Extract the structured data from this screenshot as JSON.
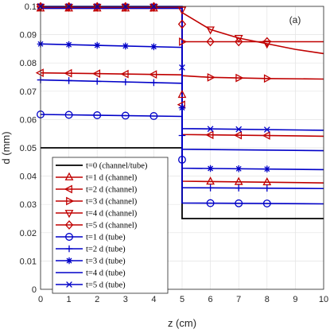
{
  "chart_data": {
    "type": "line",
    "panel_label": "(a)",
    "xlabel": "z (cm)",
    "ylabel": "d (mm)",
    "xlim": [
      0,
      10
    ],
    "ylim": [
      0,
      0.1
    ],
    "xticks": [
      "0",
      "1",
      "2",
      "3",
      "4",
      "5",
      "6",
      "7",
      "8",
      "9",
      "10"
    ],
    "yticks": [
      "0",
      "0.01",
      "0.02",
      "0.03",
      "0.04",
      "0.05",
      "0.06",
      "0.07",
      "0.08",
      "0.09",
      "0.1"
    ],
    "grid": true,
    "legend_position": "lower-left",
    "marker_x": [
      0,
      1,
      2,
      3,
      4,
      6,
      7,
      8
    ],
    "series": [
      {
        "name": "t=0 (channel/tube)",
        "color": "#000000",
        "marker": "none",
        "x": [
          0,
          5,
          5,
          10
        ],
        "y": [
          0.05,
          0.05,
          0.025,
          0.025
        ]
      },
      {
        "name": "t=1 d (channel)",
        "color": "#c00000",
        "marker": "triangle-up",
        "x": [
          0,
          5,
          5,
          10
        ],
        "y": [
          0.0993,
          0.0993,
          0.0382,
          0.0376
        ]
      },
      {
        "name": "t=2 d (channel)",
        "color": "#c00000",
        "marker": "triangle-left",
        "x": [
          0,
          5,
          5,
          10
        ],
        "y": [
          0.0765,
          0.0758,
          0.0547,
          0.0541
        ]
      },
      {
        "name": "t=3 d (channel)",
        "color": "#c00000",
        "marker": "triangle-right",
        "x": [
          0,
          5,
          5,
          6,
          7,
          8,
          10
        ],
        "y": [
          0.0997,
          0.0995,
          0.0755,
          0.0749,
          0.0747,
          0.0745,
          0.0743
        ]
      },
      {
        "name": "t=4 d (channel)",
        "color": "#c00000",
        "marker": "triangle-down",
        "x": [
          0,
          5,
          5,
          6,
          7,
          8,
          9,
          10
        ],
        "y": [
          0.0998,
          0.0998,
          0.0978,
          0.0918,
          0.0888,
          0.0868,
          0.0848,
          0.0833
        ]
      },
      {
        "name": "t=5 d (channel)",
        "color": "#c00000",
        "marker": "diamond",
        "x": [
          0,
          5,
          5,
          10
        ],
        "y": [
          0.0999,
          0.0999,
          0.0875,
          0.0875
        ]
      },
      {
        "name": "t=1 d (tube)",
        "color": "#0000c8",
        "marker": "circle",
        "x": [
          0,
          5,
          5,
          10
        ],
        "y": [
          0.0618,
          0.0611,
          0.0305,
          0.0302
        ]
      },
      {
        "name": "t=2 d (tube)",
        "color": "#0000c8",
        "marker": "plus",
        "x": [
          0,
          5,
          5,
          10
        ],
        "y": [
          0.074,
          0.0728,
          0.0359,
          0.0356
        ]
      },
      {
        "name": "t=3 d (tube)",
        "color": "#0000c8",
        "marker": "asterisk",
        "x": [
          0,
          5,
          5,
          10
        ],
        "y": [
          0.0867,
          0.0855,
          0.0428,
          0.0423
        ]
      },
      {
        "name": "t=4 d (tube)",
        "color": "#0000c8",
        "marker": "none",
        "x": [
          0,
          5,
          5,
          10
        ],
        "y": [
          0.0993,
          0.0993,
          0.0495,
          0.049
        ]
      },
      {
        "name": "t=5 d (tube)",
        "color": "#0000c8",
        "marker": "x",
        "x": [
          0,
          5,
          5,
          10
        ],
        "y": [
          0.1,
          0.1,
          0.0568,
          0.0562
        ]
      }
    ]
  }
}
